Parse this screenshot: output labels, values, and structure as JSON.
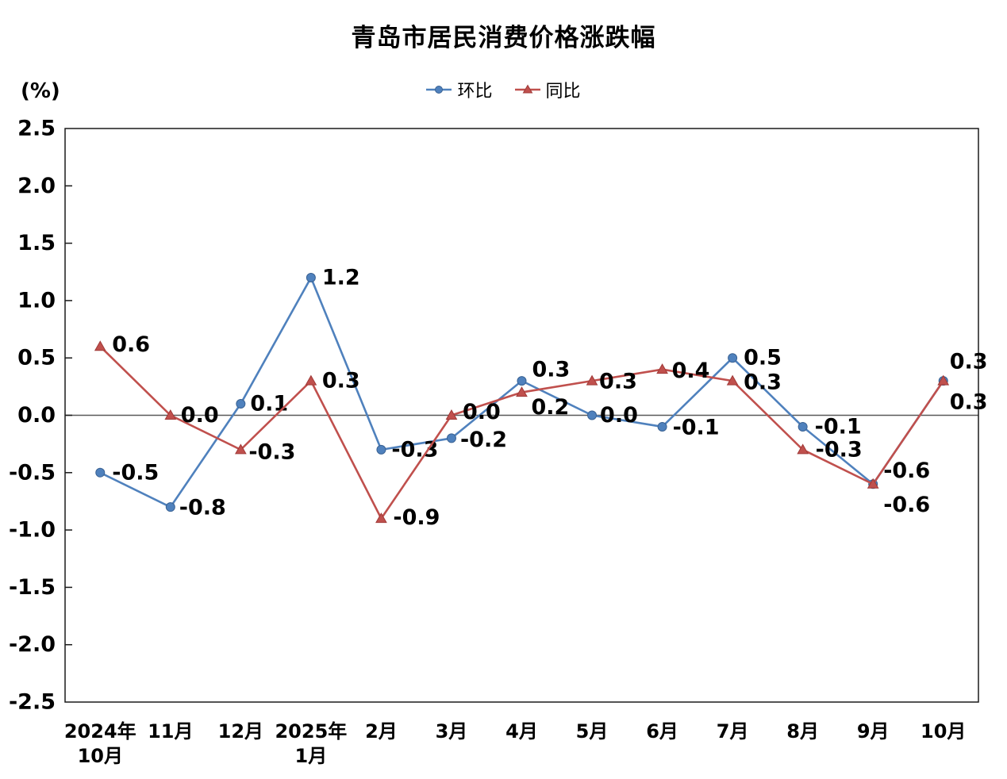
{
  "page": {
    "background": "#FFFFFF"
  },
  "chart_data": {
    "type": "line",
    "title": "青岛市居民消费价格涨跌幅",
    "ylabel": "(%)",
    "xlabel": "",
    "categories": [
      [
        "2024年",
        "10月"
      ],
      [
        "11月"
      ],
      [
        "12月"
      ],
      [
        "2025年",
        "1月"
      ],
      [
        "2月"
      ],
      [
        "3月"
      ],
      [
        "4月"
      ],
      [
        "5月"
      ],
      [
        "6月"
      ],
      [
        "7月"
      ],
      [
        "8月"
      ],
      [
        "9月"
      ],
      [
        "10月"
      ]
    ],
    "ylim": [
      -2.5,
      2.5
    ],
    "ytick_step": 0.5,
    "grid": "zero-line-only",
    "legend_position": "top-center",
    "axis_color": "#1a1a1a",
    "zero_line_color": "#595959",
    "label_color": "#000000",
    "series": [
      {
        "name": "环比",
        "color": "#4F81BD",
        "marker_stroke": "#3A6293",
        "marker": "circle",
        "values": [
          -0.5,
          -0.8,
          0.1,
          1.2,
          -0.3,
          -0.2,
          0.3,
          0.0,
          -0.1,
          0.5,
          -0.1,
          -0.6,
          0.3
        ],
        "labels": [
          "-0.5",
          "-0.8",
          "0.1",
          "1.2",
          "-0.3",
          "-0.2",
          "0.3",
          "0.0",
          "-0.1",
          "0.5",
          "-0.1",
          "-0.6",
          "0.3"
        ],
        "label_offsets": [
          [
            15,
            0
          ],
          [
            11,
            1
          ],
          [
            12,
            0
          ],
          [
            14,
            0
          ],
          [
            13,
            0
          ],
          [
            11,
            2
          ],
          [
            13,
            -14
          ],
          [
            10,
            0
          ],
          [
            13,
            1
          ],
          [
            14,
            0
          ],
          [
            15,
            0
          ],
          [
            13,
            -17
          ],
          [
            8,
            -24
          ]
        ]
      },
      {
        "name": "同比",
        "color": "#C0504D",
        "marker_stroke": "#A03A38",
        "marker": "triangle",
        "values": [
          0.6,
          0.0,
          -0.3,
          0.3,
          -0.9,
          0.0,
          0.2,
          0.3,
          0.4,
          0.3,
          -0.3,
          -0.6,
          0.3
        ],
        "labels": [
          "0.6",
          "0.0",
          "-0.3",
          "0.3",
          "-0.9",
          "0.0",
          "0.2",
          "0.3",
          "0.4",
          "0.3",
          "-0.3",
          "-0.6",
          "0.3"
        ],
        "label_offsets": [
          [
            15,
            -2
          ],
          [
            13,
            0
          ],
          [
            10,
            3
          ],
          [
            14,
            0
          ],
          [
            15,
            -1
          ],
          [
            14,
            -4
          ],
          [
            12,
            19
          ],
          [
            9,
            1
          ],
          [
            12,
            2
          ],
          [
            14,
            2
          ],
          [
            16,
            0
          ],
          [
            13,
            26
          ],
          [
            8,
            27
          ]
        ]
      }
    ]
  }
}
